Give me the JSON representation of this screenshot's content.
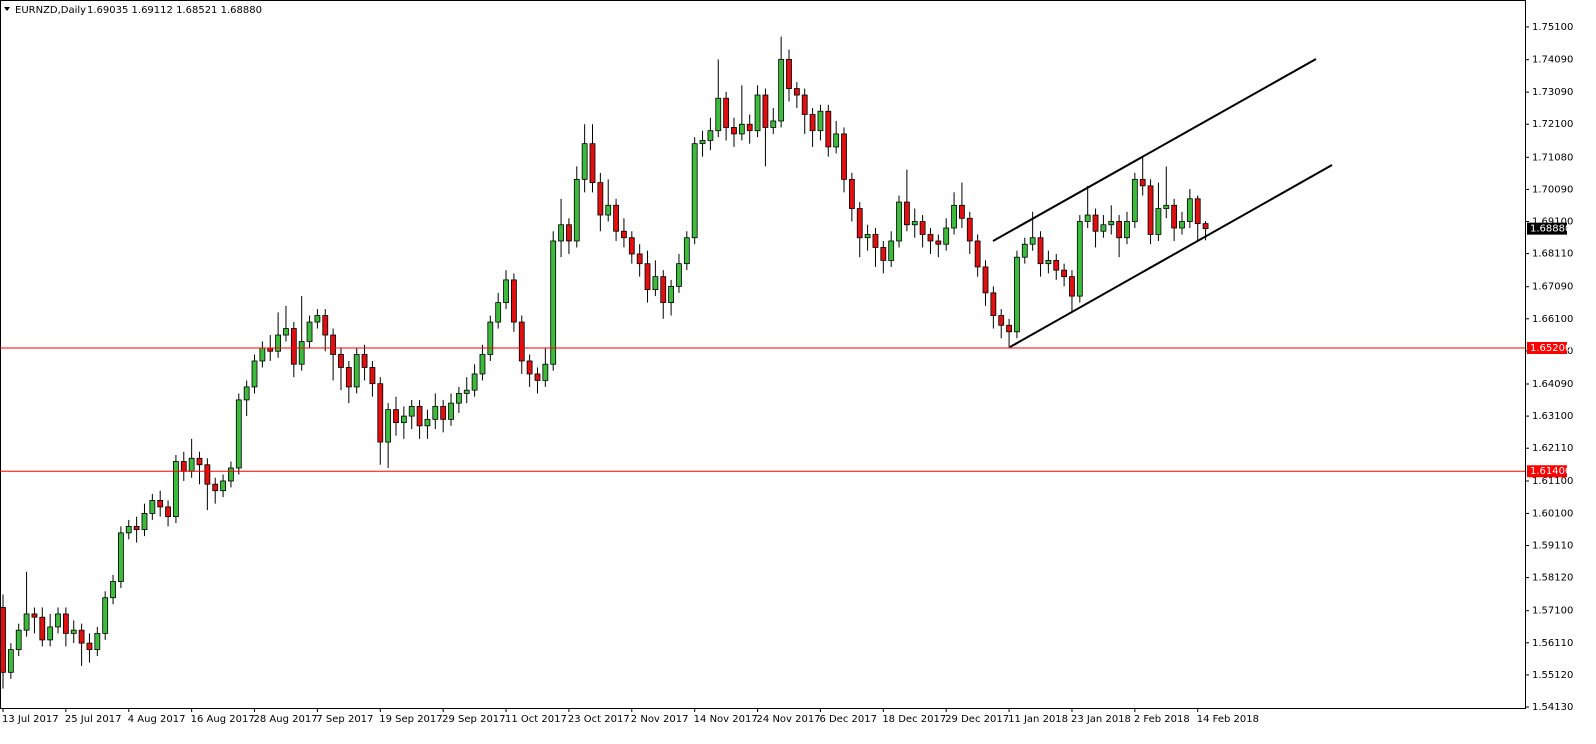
{
  "chart_data": {
    "type": "candlestick",
    "title": "EURNZD,Daily",
    "header_values": "1.69035 1.69112 1.68521 1.68880",
    "up_color": "#3dbb3d",
    "down_color": "#e01010",
    "outline_color": "#000000",
    "categories": [
      "13 Jul 2017",
      null,
      null,
      null,
      null,
      null,
      null,
      null,
      "25 Jul 2017",
      null,
      null,
      null,
      null,
      null,
      null,
      null,
      "4 Aug 2017",
      null,
      null,
      null,
      null,
      null,
      null,
      null,
      "16 Aug 2017",
      null,
      null,
      null,
      null,
      null,
      null,
      null,
      "28 Aug 2017",
      null,
      null,
      null,
      null,
      null,
      null,
      null,
      "7 Sep 2017",
      null,
      null,
      null,
      null,
      null,
      null,
      null,
      "19 Sep 2017",
      null,
      null,
      null,
      null,
      null,
      null,
      null,
      "29 Sep 2017",
      null,
      null,
      null,
      null,
      null,
      null,
      null,
      "11 Oct 2017",
      null,
      null,
      null,
      null,
      null,
      null,
      null,
      "23 Oct 2017",
      null,
      null,
      null,
      null,
      null,
      null,
      null,
      "2 Nov 2017",
      null,
      null,
      null,
      null,
      null,
      null,
      null,
      "14 Nov 2017",
      null,
      null,
      null,
      null,
      null,
      null,
      null,
      "24 Nov 2017",
      null,
      null,
      null,
      null,
      null,
      null,
      null,
      "6 Dec 2017",
      null,
      null,
      null,
      null,
      null,
      null,
      null,
      "18 Dec 2017",
      null,
      null,
      null,
      null,
      null,
      null,
      null,
      "29 Dec 2017",
      null,
      null,
      null,
      null,
      null,
      null,
      null,
      "11 Jan 2018",
      null,
      null,
      null,
      null,
      null,
      null,
      null,
      "23 Jan 2018",
      null,
      null,
      null,
      null,
      null,
      null,
      null,
      "2 Feb 2018",
      null,
      null,
      null,
      null,
      null,
      null,
      null,
      "14 Feb 2018",
      null
    ],
    "open": [
      1.572,
      1.552,
      1.559,
      1.565,
      1.57,
      1.569,
      1.562,
      1.566,
      1.57,
      1.564,
      1.565,
      1.561,
      1.559,
      1.564,
      1.575,
      1.58,
      1.595,
      1.597,
      1.596,
      1.601,
      1.605,
      1.603,
      1.6,
      1.617,
      1.614,
      1.618,
      1.616,
      1.61,
      1.608,
      1.611,
      1.615,
      1.636,
      1.64,
      1.648,
      1.652,
      1.651,
      1.656,
      1.658,
      1.647,
      1.654,
      1.66,
      1.662,
      1.656,
      1.65,
      1.646,
      1.64,
      1.65,
      1.646,
      1.641,
      1.623,
      1.633,
      1.629,
      1.631,
      1.634,
      1.628,
      1.63,
      1.634,
      1.63,
      1.635,
      1.638,
      1.639,
      1.644,
      1.65,
      1.66,
      1.666,
      1.673,
      1.66,
      1.648,
      1.644,
      1.642,
      1.647,
      1.685,
      1.69,
      1.685,
      1.704,
      1.715,
      1.703,
      1.693,
      1.696,
      1.688,
      1.686,
      1.681,
      1.678,
      1.67,
      1.674,
      1.666,
      1.671,
      1.678,
      1.686,
      1.715,
      1.716,
      1.719,
      1.729,
      1.72,
      1.718,
      1.721,
      1.719,
      1.73,
      1.72,
      1.722,
      1.741,
      1.732,
      1.73,
      1.724,
      1.719,
      1.725,
      1.714,
      1.718,
      1.704,
      1.695,
      1.686,
      1.687,
      1.683,
      1.679,
      1.685,
      1.697,
      1.69,
      1.691,
      1.687,
      1.685,
      1.684,
      1.689,
      1.696,
      1.692,
      1.685,
      1.677,
      1.669,
      1.662,
      1.659,
      1.657,
      1.68,
      1.684,
      1.686,
      1.678,
      1.679,
      1.676,
      1.674,
      1.668,
      1.691,
      1.693,
      1.688,
      1.69,
      1.691,
      1.686,
      1.691,
      1.704,
      1.702,
      1.687,
      1.695,
      1.696,
      1.689,
      1.691,
      1.698,
      1.69035
    ],
    "high": [
      1.576,
      1.561,
      1.567,
      1.583,
      1.572,
      1.572,
      1.57,
      1.572,
      1.572,
      1.568,
      1.567,
      1.564,
      1.566,
      1.577,
      1.582,
      1.597,
      1.599,
      1.6,
      1.604,
      1.607,
      1.608,
      1.605,
      1.619,
      1.62,
      1.624,
      1.62,
      1.618,
      1.612,
      1.613,
      1.617,
      1.638,
      1.642,
      1.65,
      1.654,
      1.656,
      1.663,
      1.665,
      1.66,
      1.668,
      1.662,
      1.664,
      1.664,
      1.658,
      1.652,
      1.648,
      1.652,
      1.653,
      1.648,
      1.643,
      1.635,
      1.637,
      1.634,
      1.636,
      1.636,
      1.633,
      1.638,
      1.636,
      1.638,
      1.64,
      1.643,
      1.647,
      1.653,
      1.662,
      1.669,
      1.676,
      1.675,
      1.662,
      1.65,
      1.646,
      1.652,
      1.688,
      1.698,
      1.692,
      1.708,
      1.721,
      1.721,
      1.706,
      1.704,
      1.698,
      1.692,
      1.688,
      1.684,
      1.682,
      1.679,
      1.676,
      1.673,
      1.681,
      1.688,
      1.717,
      1.719,
      1.723,
      1.741,
      1.731,
      1.723,
      1.733,
      1.724,
      1.733,
      1.732,
      1.726,
      1.748,
      1.744,
      1.734,
      1.732,
      1.726,
      1.727,
      1.727,
      1.722,
      1.72,
      1.706,
      1.697,
      1.69,
      1.689,
      1.685,
      1.688,
      1.699,
      1.707,
      1.695,
      1.693,
      1.689,
      1.687,
      1.692,
      1.7,
      1.703,
      1.694,
      1.687,
      1.679,
      1.671,
      1.664,
      1.661,
      1.682,
      1.686,
      1.694,
      1.688,
      1.682,
      1.681,
      1.678,
      1.676,
      1.693,
      1.702,
      1.695,
      1.693,
      1.696,
      1.693,
      1.694,
      1.706,
      1.711,
      1.704,
      1.703,
      1.708,
      1.698,
      1.694,
      1.701,
      1.699,
      1.69112
    ],
    "low": [
      1.547,
      1.55,
      1.557,
      1.563,
      1.564,
      1.56,
      1.56,
      1.564,
      1.56,
      1.561,
      1.554,
      1.555,
      1.557,
      1.562,
      1.573,
      1.578,
      1.593,
      1.592,
      1.594,
      1.599,
      1.6,
      1.597,
      1.598,
      1.611,
      1.612,
      1.61,
      1.602,
      1.604,
      1.606,
      1.609,
      1.613,
      1.631,
      1.638,
      1.646,
      1.648,
      1.649,
      1.654,
      1.643,
      1.645,
      1.652,
      1.658,
      1.651,
      1.642,
      1.639,
      1.635,
      1.638,
      1.642,
      1.637,
      1.616,
      1.615,
      1.625,
      1.624,
      1.627,
      1.624,
      1.624,
      1.627,
      1.626,
      1.628,
      1.632,
      1.635,
      1.637,
      1.642,
      1.648,
      1.658,
      1.664,
      1.657,
      1.644,
      1.64,
      1.638,
      1.64,
      1.645,
      1.68,
      1.681,
      1.683,
      1.7,
      1.7,
      1.688,
      1.691,
      1.685,
      1.683,
      1.678,
      1.674,
      1.666,
      1.668,
      1.661,
      1.662,
      1.669,
      1.676,
      1.684,
      1.711,
      1.713,
      1.717,
      1.716,
      1.714,
      1.716,
      1.715,
      1.717,
      1.708,
      1.718,
      1.72,
      1.728,
      1.726,
      1.718,
      1.714,
      1.716,
      1.711,
      1.712,
      1.7,
      1.691,
      1.68,
      1.682,
      1.677,
      1.675,
      1.677,
      1.683,
      1.688,
      1.686,
      1.683,
      1.681,
      1.68,
      1.682,
      1.687,
      1.689,
      1.681,
      1.674,
      1.665,
      1.658,
      1.655,
      1.652,
      1.655,
      1.678,
      1.682,
      1.674,
      1.675,
      1.673,
      1.671,
      1.663,
      1.666,
      1.689,
      1.683,
      1.686,
      1.687,
      1.68,
      1.684,
      1.689,
      1.699,
      1.684,
      1.685,
      1.692,
      1.685,
      1.687,
      1.689,
      1.685,
      1.68521
    ],
    "close": [
      1.552,
      1.559,
      1.565,
      1.57,
      1.569,
      1.562,
      1.566,
      1.57,
      1.564,
      1.565,
      1.561,
      1.559,
      1.564,
      1.575,
      1.58,
      1.595,
      1.597,
      1.596,
      1.601,
      1.605,
      1.603,
      1.6,
      1.617,
      1.614,
      1.618,
      1.616,
      1.61,
      1.608,
      1.611,
      1.615,
      1.636,
      1.64,
      1.648,
      1.652,
      1.651,
      1.656,
      1.658,
      1.647,
      1.654,
      1.66,
      1.662,
      1.656,
      1.65,
      1.646,
      1.64,
      1.65,
      1.646,
      1.641,
      1.623,
      1.633,
      1.629,
      1.631,
      1.634,
      1.628,
      1.63,
      1.634,
      1.63,
      1.635,
      1.638,
      1.639,
      1.644,
      1.65,
      1.66,
      1.666,
      1.673,
      1.66,
      1.648,
      1.644,
      1.642,
      1.647,
      1.685,
      1.69,
      1.685,
      1.704,
      1.715,
      1.703,
      1.693,
      1.696,
      1.688,
      1.686,
      1.681,
      1.678,
      1.67,
      1.674,
      1.666,
      1.671,
      1.678,
      1.686,
      1.715,
      1.716,
      1.719,
      1.729,
      1.72,
      1.718,
      1.721,
      1.719,
      1.73,
      1.72,
      1.722,
      1.741,
      1.732,
      1.73,
      1.724,
      1.719,
      1.725,
      1.714,
      1.718,
      1.704,
      1.695,
      1.686,
      1.687,
      1.683,
      1.679,
      1.685,
      1.697,
      1.69,
      1.691,
      1.687,
      1.685,
      1.684,
      1.689,
      1.696,
      1.692,
      1.685,
      1.677,
      1.669,
      1.662,
      1.659,
      1.657,
      1.68,
      1.684,
      1.686,
      1.678,
      1.679,
      1.676,
      1.674,
      1.668,
      1.691,
      1.693,
      1.688,
      1.69,
      1.691,
      1.686,
      1.691,
      1.704,
      1.702,
      1.687,
      1.695,
      1.696,
      1.689,
      1.691,
      1.698,
      1.69035,
      1.6888
    ],
    "ylim": [
      1.541,
      1.7593
    ],
    "yticks": [
      {
        "value": 1.751,
        "label": "1.75100"
      },
      {
        "value": 1.7409,
        "label": "1.74090"
      },
      {
        "value": 1.7309,
        "label": "1.73090"
      },
      {
        "value": 1.721,
        "label": "1.72100"
      },
      {
        "value": 1.7108,
        "label": "1.71080"
      },
      {
        "value": 1.7009,
        "label": "1.70090"
      },
      {
        "value": 1.691,
        "label": "1.69100"
      },
      {
        "value": 1.6811,
        "label": "1.68110"
      },
      {
        "value": 1.6709,
        "label": "1.67090"
      },
      {
        "value": 1.661,
        "label": "1.66100"
      },
      {
        "value": 1.6511,
        "label": "1.65110"
      },
      {
        "value": 1.6409,
        "label": "1.64090"
      },
      {
        "value": 1.631,
        "label": "1.63100"
      },
      {
        "value": 1.6211,
        "label": "1.62110"
      },
      {
        "value": 1.611,
        "label": "1.61100"
      },
      {
        "value": 1.601,
        "label": "1.60100"
      },
      {
        "value": 1.5911,
        "label": "1.59110"
      },
      {
        "value": 1.5812,
        "label": "1.58120"
      },
      {
        "value": 1.571,
        "label": "1.57100"
      },
      {
        "value": 1.5611,
        "label": "1.56110"
      },
      {
        "value": 1.5512,
        "label": "1.55120"
      },
      {
        "value": 1.5413,
        "label": "1.54130"
      }
    ],
    "levels": [
      {
        "value": 1.652,
        "label": "1.65200",
        "color": "#ff0000"
      },
      {
        "value": 1.614,
        "label": "1.61400",
        "color": "#ff0000"
      }
    ],
    "last_price": {
      "value": 1.6888,
      "label": "1.68880",
      "color": "#000000"
    }
  }
}
